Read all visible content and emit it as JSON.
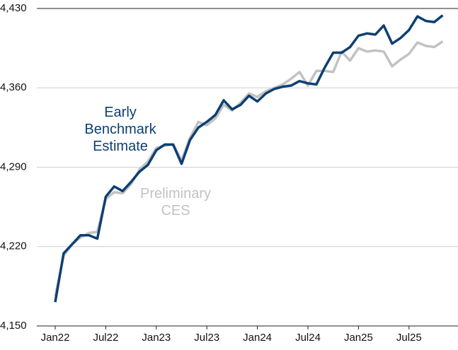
{
  "chart_data": {
    "type": "line",
    "categories": [
      "Jan22",
      null,
      null,
      null,
      null,
      null,
      "Jul22",
      null,
      null,
      null,
      null,
      null,
      "Jan23",
      null,
      null,
      null,
      null,
      null,
      "Jul23",
      null,
      null,
      null,
      null,
      null,
      "Jan24",
      null,
      null,
      null,
      null,
      null,
      "Jul24",
      null,
      null,
      null,
      null,
      null,
      "Jan25",
      null,
      null,
      null,
      null,
      null,
      "Jul25",
      null,
      null,
      null,
      null
    ],
    "series": [
      {
        "name": "Preliminary CES",
        "color": "#c2c2c2",
        "values": [
          4176,
          4212,
          4222,
          4228,
          4232,
          4233,
          4262,
          4268,
          4267,
          4275,
          4288,
          4295,
          4307,
          4309,
          4310,
          4296,
          4316,
          4330,
          4327,
          4333,
          4345,
          4340,
          4347,
          4355,
          4352,
          4357,
          4360,
          4363,
          4368,
          4374,
          4362,
          4375,
          4375,
          4374,
          4392,
          4384,
          4395,
          4392,
          4393,
          4392,
          4379,
          4385,
          4390,
          4400,
          4397,
          4396,
          4401
        ]
      },
      {
        "name": "Early Benchmark Estimate",
        "color": "#0d3f73",
        "values": [
          4171,
          4214,
          4222,
          4230,
          4230,
          4227,
          4264,
          4273,
          4269,
          4277,
          4286,
          4292,
          4305,
          4310,
          4310,
          4293,
          4314,
          4325,
          4330,
          4336,
          4349,
          4341,
          4345,
          4353,
          4348,
          4355,
          4359,
          4361,
          4362,
          4366,
          4364,
          4363,
          4378,
          4391,
          4391,
          4396,
          4406,
          4408,
          4407,
          4415,
          4399,
          4404,
          4411,
          4423,
          4419,
          4418,
          4424
        ]
      }
    ],
    "ylim": [
      4150,
      4430
    ],
    "yticks": [
      {
        "value": 4150,
        "label": "4,150"
      },
      {
        "value": 4220,
        "label": "4,220"
      },
      {
        "value": 4290,
        "label": "4,290"
      },
      {
        "value": 4360,
        "label": "4,360"
      },
      {
        "value": 4430,
        "label": "4,430"
      }
    ],
    "grid": true
  }
}
